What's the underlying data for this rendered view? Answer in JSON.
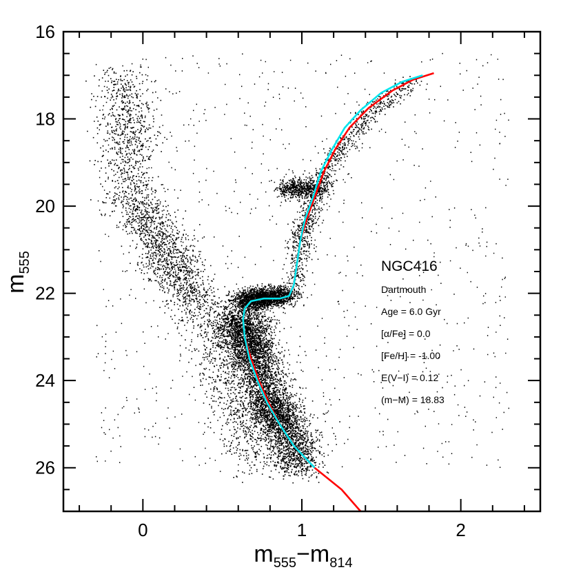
{
  "chart_data": {
    "type": "scatter",
    "xlabel": {
      "main": "m",
      "sub1": "555",
      "sep": "−m",
      "sub2": "814"
    },
    "ylabel": {
      "main": "m",
      "sub": "555"
    },
    "xlim": [
      -0.5,
      2.5
    ],
    "ylim": [
      27,
      16
    ],
    "y_inverted": true,
    "x_ticks": [
      0,
      1,
      2
    ],
    "x_tick_labels": [
      "0",
      "1",
      "2"
    ],
    "x_minor_step": 0.2,
    "y_ticks": [
      16,
      18,
      20,
      22,
      24,
      26
    ],
    "y_tick_labels": [
      "16",
      "18",
      "20",
      "22",
      "24",
      "26"
    ],
    "y_minor_step": 0.5,
    "annotation": {
      "title": "NGC416",
      "lines": [
        "Dartmouth",
        "Age = 6.0 Gyr",
        "[α/Fe] = 0.0",
        "[Fe/H] = -1.00",
        "E(V−I) = 0.12",
        "(m−M) = 18.83"
      ]
    },
    "series": [
      {
        "kind": "isochrone",
        "color": "#ff0000",
        "points": [
          [
            1.37,
            27.0
          ],
          [
            1.25,
            26.5
          ],
          [
            1.08,
            26.0
          ],
          [
            0.95,
            25.5
          ],
          [
            0.86,
            25.0
          ],
          [
            0.79,
            24.5
          ],
          [
            0.73,
            24.0
          ],
          [
            0.68,
            23.5
          ],
          [
            0.64,
            23.0
          ],
          [
            0.63,
            22.6
          ],
          [
            0.64,
            22.35
          ],
          [
            0.68,
            22.18
          ],
          [
            0.76,
            22.12
          ],
          [
            0.86,
            22.12
          ],
          [
            0.92,
            22.06
          ],
          [
            0.95,
            21.8
          ],
          [
            0.97,
            21.3
          ],
          [
            0.99,
            20.8
          ],
          [
            1.03,
            20.3
          ],
          [
            1.08,
            19.8
          ],
          [
            1.14,
            19.2
          ],
          [
            1.21,
            18.7
          ],
          [
            1.3,
            18.2
          ],
          [
            1.42,
            17.75
          ],
          [
            1.57,
            17.35
          ],
          [
            1.7,
            17.1
          ],
          [
            1.83,
            16.95
          ]
        ]
      },
      {
        "kind": "isochrone",
        "color": "#00e5ee",
        "points": [
          [
            1.08,
            26.0
          ],
          [
            0.95,
            25.5
          ],
          [
            0.86,
            25.0
          ],
          [
            0.78,
            24.5
          ],
          [
            0.72,
            24.0
          ],
          [
            0.67,
            23.5
          ],
          [
            0.64,
            23.0
          ],
          [
            0.63,
            22.6
          ],
          [
            0.64,
            22.35
          ],
          [
            0.68,
            22.18
          ],
          [
            0.76,
            22.12
          ],
          [
            0.86,
            22.12
          ],
          [
            0.92,
            22.06
          ],
          [
            0.95,
            21.8
          ],
          [
            0.97,
            21.3
          ],
          [
            0.99,
            20.8
          ],
          [
            1.02,
            20.3
          ],
          [
            1.07,
            19.8
          ],
          [
            1.12,
            19.2
          ],
          [
            1.19,
            18.7
          ],
          [
            1.27,
            18.2
          ],
          [
            1.37,
            17.8
          ],
          [
            1.5,
            17.4
          ],
          [
            1.63,
            17.15
          ],
          [
            1.76,
            17.0
          ]
        ]
      }
    ],
    "scatter_regions": [
      {
        "name": "upper-main-sequence",
        "points": [
          [
            0.72,
            26.0
          ],
          [
            0.58,
            24.5
          ],
          [
            0.45,
            23.0
          ],
          [
            0.3,
            22.0
          ],
          [
            0.2,
            21.5
          ],
          [
            0.15,
            21.0
          ],
          [
            0.05,
            20.5
          ],
          [
            -0.05,
            20.0
          ],
          [
            -0.1,
            19.0
          ],
          [
            -0.1,
            18.0
          ],
          [
            -0.12,
            17.0
          ]
        ],
        "spread": 0.09,
        "weight": 0.55
      },
      {
        "name": "main-sequence",
        "points": [
          [
            1.0,
            26.0
          ],
          [
            0.88,
            25.0
          ],
          [
            0.78,
            24.5
          ],
          [
            0.7,
            23.5
          ],
          [
            0.64,
            23.0
          ],
          [
            0.62,
            22.5
          ]
        ],
        "spread": 0.08,
        "weight": 1.0
      },
      {
        "name": "subgiant-branch",
        "points": [
          [
            0.62,
            22.2
          ],
          [
            0.75,
            22.1
          ],
          [
            0.9,
            22.05
          ]
        ],
        "spread": 0.05,
        "weight": 0.4
      },
      {
        "name": "red-giant-branch",
        "points": [
          [
            0.96,
            21.8
          ],
          [
            0.99,
            20.8
          ],
          [
            1.04,
            20.2
          ],
          [
            1.12,
            19.4
          ],
          [
            1.25,
            18.6
          ],
          [
            1.45,
            17.8
          ],
          [
            1.7,
            17.1
          ]
        ],
        "spread": 0.04,
        "weight": 0.2
      },
      {
        "name": "red-clump",
        "points": [
          [
            0.9,
            19.6
          ],
          [
            1.0,
            19.6
          ],
          [
            1.1,
            19.6
          ]
        ],
        "spread": 0.05,
        "weight": 0.12
      }
    ]
  }
}
